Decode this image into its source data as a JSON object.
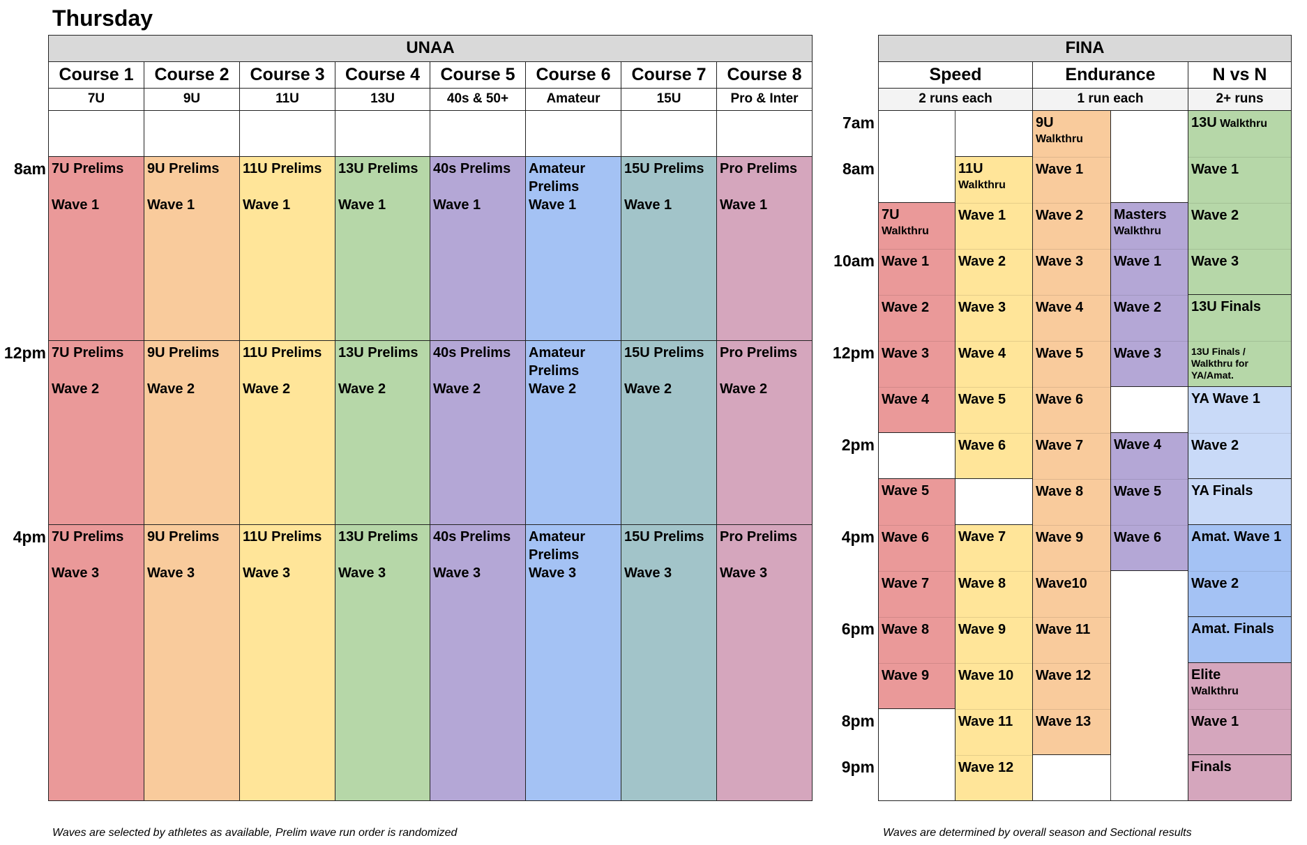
{
  "page_title": "Thursday",
  "colors": {
    "header_gray": "#d9d9d9",
    "subheader_gray": "#f3f3f3",
    "red": "#ea9999",
    "orange": "#f9cb9c",
    "yellow": "#ffe599",
    "green": "#b6d7a8",
    "purple": "#b4a7d6",
    "blue": "#a4c2f4",
    "teal": "#a2c4c9",
    "pink": "#d5a6bd",
    "light_blue": "#c9daf8"
  },
  "unaa": {
    "title": "UNAA",
    "time_labels": [
      {
        "label": "8am",
        "row": 1
      },
      {
        "label": "12pm",
        "row": 5
      },
      {
        "label": "4pm",
        "row": 9
      }
    ],
    "courses": [
      {
        "name": "Course 1",
        "division": "7U",
        "color": "red",
        "blocks": [
          {
            "line1": "7U Prelims",
            "line2": "Wave 1"
          },
          {
            "line1": "7U Prelims",
            "line2": "Wave 2"
          },
          {
            "line1": "7U Prelims",
            "line2": "Wave 3"
          }
        ]
      },
      {
        "name": "Course 2",
        "division": "9U",
        "color": "orange",
        "blocks": [
          {
            "line1": "9U Prelims",
            "line2": "Wave 1"
          },
          {
            "line1": "9U Prelims",
            "line2": "Wave 2"
          },
          {
            "line1": "9U Prelims",
            "line2": "Wave 3"
          }
        ]
      },
      {
        "name": "Course 3",
        "division": "11U",
        "color": "yellow",
        "blocks": [
          {
            "line1": "11U Prelims",
            "line2": "Wave 1"
          },
          {
            "line1": "11U Prelims",
            "line2": "Wave 2"
          },
          {
            "line1": "11U Prelims",
            "line2": "Wave 3"
          }
        ]
      },
      {
        "name": "Course 4",
        "division": "13U",
        "color": "green",
        "blocks": [
          {
            "line1": "13U Prelims",
            "line2": "Wave 1"
          },
          {
            "line1": "13U Prelims",
            "line2": "Wave 2"
          },
          {
            "line1": "13U Prelims",
            "line2": "Wave 3"
          }
        ]
      },
      {
        "name": "Course 5",
        "division": "40s & 50+",
        "color": "purple",
        "blocks": [
          {
            "line1": "40s Prelims",
            "line2": "Wave 1"
          },
          {
            "line1": "40s Prelims",
            "line2": "Wave 2"
          },
          {
            "line1": "40s Prelims",
            "line2": "Wave 3"
          }
        ]
      },
      {
        "name": "Course 6",
        "division": "Amateur",
        "color": "blue",
        "blocks": [
          {
            "line1": "Amateur Prelims",
            "line2": "Wave 1"
          },
          {
            "line1": "Amateur Prelims",
            "line2": "Wave 2"
          },
          {
            "line1": "Amateur Prelims",
            "line2": "Wave 3"
          }
        ]
      },
      {
        "name": "Course 7",
        "division": "15U",
        "color": "teal",
        "blocks": [
          {
            "line1": "15U Prelims",
            "line2": "Wave 1"
          },
          {
            "line1": "15U Prelims",
            "line2": "Wave 2"
          },
          {
            "line1": "15U Prelims",
            "line2": "Wave 3"
          }
        ]
      },
      {
        "name": "Course 8",
        "division": "Pro & Inter",
        "color": "pink",
        "blocks": [
          {
            "line1": "Pro Prelims",
            "line2": "Wave 1"
          },
          {
            "line1": "Pro Prelims",
            "line2": "Wave 2"
          },
          {
            "line1": "Pro Prelims",
            "line2": "Wave 3"
          }
        ]
      }
    ],
    "footer": "Waves are selected by athletes as available, Prelim wave run order is randomized"
  },
  "fina": {
    "title": "FINA",
    "time_labels": [
      {
        "label": "7am",
        "row": 0
      },
      {
        "label": "8am",
        "row": 1
      },
      {
        "label": "10am",
        "row": 3
      },
      {
        "label": "12pm",
        "row": 5
      },
      {
        "label": "2pm",
        "row": 7
      },
      {
        "label": "4pm",
        "row": 9
      },
      {
        "label": "6pm",
        "row": 11
      },
      {
        "label": "8pm",
        "row": 13
      },
      {
        "label": "9pm",
        "row": 14
      }
    ],
    "events": [
      {
        "name": "Speed",
        "note": "2 runs each"
      },
      {
        "name": "Endurance",
        "note": "1 run each"
      },
      {
        "name": "N vs N",
        "note": "2+ runs"
      }
    ],
    "columns": [
      {
        "id": "speed-a",
        "blocks": [
          {
            "color": "red",
            "start": 2,
            "cells": [
              {
                "text": "7U",
                "small": "Walkthru"
              },
              {
                "text": "Wave 1"
              },
              {
                "text": "Wave 2"
              },
              {
                "text": "Wave 3"
              },
              {
                "text": "Wave 4"
              }
            ]
          },
          {
            "color": "red",
            "start": 8,
            "cells": [
              {
                "text": "Wave 5"
              },
              {
                "text": "Wave 6"
              },
              {
                "text": "Wave 7"
              },
              {
                "text": "Wave 8"
              },
              {
                "text": "Wave 9"
              }
            ]
          }
        ]
      },
      {
        "id": "speed-b",
        "blocks": [
          {
            "color": "yellow",
            "start": 1,
            "cells": [
              {
                "text": "11U",
                "small": "Walkthru"
              },
              {
                "text": "Wave 1"
              },
              {
                "text": "Wave 2"
              },
              {
                "text": "Wave 3"
              },
              {
                "text": "Wave 4"
              },
              {
                "text": "Wave 5"
              },
              {
                "text": "Wave 6"
              }
            ]
          },
          {
            "color": "yellow",
            "start": 9,
            "cells": [
              {
                "text": "Wave 7"
              },
              {
                "text": "Wave 8"
              },
              {
                "text": "Wave 9"
              },
              {
                "text": "Wave 10"
              },
              {
                "text": "Wave 11"
              },
              {
                "text": "Wave 12"
              }
            ]
          }
        ]
      },
      {
        "id": "endurance-a",
        "blocks": [
          {
            "color": "orange",
            "start": 0,
            "cells": [
              {
                "text": "9U",
                "small": "Walkthru"
              },
              {
                "text": "Wave 1"
              },
              {
                "text": "Wave 2"
              },
              {
                "text": "Wave 3"
              },
              {
                "text": "Wave 4"
              },
              {
                "text": "Wave 5"
              },
              {
                "text": "Wave 6"
              },
              {
                "text": "Wave 7"
              },
              {
                "text": "Wave 8"
              },
              {
                "text": "Wave 9"
              },
              {
                "text": "Wave10"
              },
              {
                "text": "Wave 11"
              },
              {
                "text": "Wave 12"
              },
              {
                "text": "Wave 13"
              }
            ]
          }
        ]
      },
      {
        "id": "endurance-b",
        "blocks": [
          {
            "color": "purple",
            "start": 2,
            "cells": [
              {
                "text": "Masters",
                "small": "Walkthru"
              },
              {
                "text": "Wave 1"
              },
              {
                "text": "Wave 2"
              },
              {
                "text": "Wave 3"
              }
            ]
          },
          {
            "color": "purple",
            "start": 7,
            "cells": [
              {
                "text": "Wave 4"
              },
              {
                "text": "Wave 5"
              },
              {
                "text": "Wave 6"
              }
            ]
          }
        ]
      },
      {
        "id": "nvsn",
        "blocks": [
          {
            "color": "green",
            "start": 0,
            "cells": [
              {
                "text": "13U",
                "inline_small": " Walkthru"
              },
              {
                "text": "Wave 1"
              },
              {
                "text": "Wave 2"
              },
              {
                "text": "Wave 3"
              }
            ]
          },
          {
            "color": "green",
            "start": 4,
            "cells": [
              {
                "text": "13U Finals"
              },
              {
                "tiny": "13U Finals / Walkthru for YA/Amat."
              }
            ]
          },
          {
            "color": "light_blue",
            "start": 6,
            "cells": [
              {
                "text": "YA Wave 1"
              },
              {
                "text": "Wave 2"
              }
            ]
          },
          {
            "color": "light_blue",
            "start": 8,
            "cells": [
              {
                "text": "YA Finals"
              }
            ]
          },
          {
            "color": "blue",
            "start": 9,
            "cells": [
              {
                "text": "Amat. Wave 1"
              },
              {
                "text": "Wave 2"
              }
            ]
          },
          {
            "color": "blue",
            "start": 11,
            "cells": [
              {
                "text": "Amat. Finals"
              }
            ]
          },
          {
            "color": "pink",
            "start": 12,
            "cells": [
              {
                "text": "Elite",
                "small": "Walkthru"
              },
              {
                "text": "Wave 1"
              }
            ]
          },
          {
            "color": "pink",
            "start": 14,
            "cells": [
              {
                "text": "Finals"
              }
            ]
          }
        ]
      }
    ],
    "footer": "Waves are determined by overall season and Sectional results"
  }
}
